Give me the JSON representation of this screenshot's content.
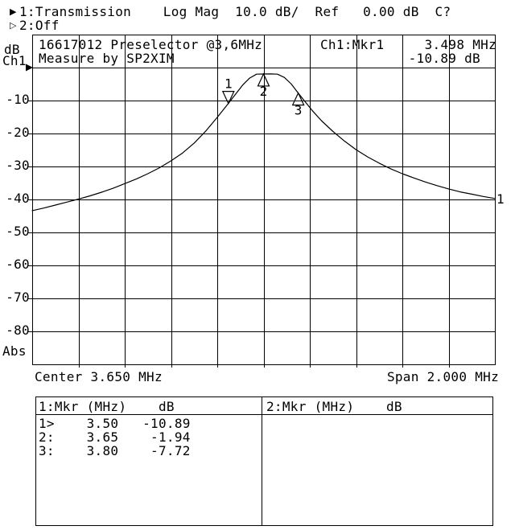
{
  "window": {
    "bg": "#ffffff",
    "fg": "#000000"
  },
  "status_bar": {
    "line1": {
      "icon": "filled-right-triangle",
      "text": "1:Transmission    Log Mag  10.0 dB/  Ref   0.00 dB  C?"
    },
    "line2": {
      "icon": "open-right-triangle",
      "text": "2:Off"
    }
  },
  "left_axis": {
    "unit": "dB",
    "channel": "Ch1",
    "bottom_label": "Abs"
  },
  "title": {
    "line1": "16617012 Preselector @3,6MHz",
    "line2": "Measure by SP2XIM"
  },
  "readout": {
    "channel_marker": "Ch1:Mkr1",
    "freq": "3.498 MHz",
    "value": "-10.89 dB"
  },
  "x_axis_labels": {
    "center": "Center 3.650 MHz",
    "span": "Span 2.000 MHz"
  },
  "marker_table": {
    "left": {
      "header": "1:Mkr (MHz)    dB",
      "rows": [
        "1>    3.50   -10.89",
        "2:    3.65    -1.94",
        "3:    3.80    -7.72"
      ]
    },
    "right": {
      "header": "2:Mkr (MHz)    dB",
      "rows": []
    }
  },
  "chart_data": {
    "type": "line",
    "title": "16617012 Preselector @3,6MHz",
    "subtitle": "Measure by SP2XIM",
    "x_axis": {
      "start_mhz": 2.65,
      "stop_mhz": 4.65,
      "center_mhz": 3.65,
      "span_mhz": 2.0,
      "divisions": 10
    },
    "y_axis": {
      "unit": "dB",
      "top_db": 10,
      "bottom_db": -90,
      "db_per_div": 10,
      "tick_labels": [
        "-10",
        "-20",
        "-30",
        "-40",
        "-50",
        "-60",
        "-70",
        "-80"
      ],
      "bottom_label": "Abs"
    },
    "ref_level_db": 0,
    "grid": true,
    "trace": {
      "name": "1",
      "points": [
        [
          2.65,
          -43.4
        ],
        [
          2.7,
          -42.6
        ],
        [
          2.75,
          -41.7
        ],
        [
          2.8,
          -40.8
        ],
        [
          2.85,
          -39.9
        ],
        [
          2.9,
          -38.9
        ],
        [
          2.95,
          -37.8
        ],
        [
          3.0,
          -36.6
        ],
        [
          3.05,
          -35.2
        ],
        [
          3.1,
          -33.8
        ],
        [
          3.15,
          -32.2
        ],
        [
          3.2,
          -30.4
        ],
        [
          3.25,
          -28.3
        ],
        [
          3.3,
          -25.9
        ],
        [
          3.35,
          -22.9
        ],
        [
          3.4,
          -19.3
        ],
        [
          3.45,
          -15.1
        ],
        [
          3.498,
          -10.89
        ],
        [
          3.53,
          -8.0
        ],
        [
          3.56,
          -5.3
        ],
        [
          3.59,
          -3.2
        ],
        [
          3.62,
          -2.0
        ],
        [
          3.65,
          -1.94
        ],
        [
          3.68,
          -1.92
        ],
        [
          3.71,
          -2.0
        ],
        [
          3.74,
          -3.0
        ],
        [
          3.77,
          -5.0
        ],
        [
          3.8,
          -7.72
        ],
        [
          3.83,
          -10.4
        ],
        [
          3.86,
          -13.0
        ],
        [
          3.9,
          -16.1
        ],
        [
          3.95,
          -19.4
        ],
        [
          4.0,
          -22.3
        ],
        [
          4.05,
          -24.9
        ],
        [
          4.1,
          -27.1
        ],
        [
          4.15,
          -29.0
        ],
        [
          4.2,
          -30.7
        ],
        [
          4.25,
          -32.2
        ],
        [
          4.3,
          -33.5
        ],
        [
          4.35,
          -34.7
        ],
        [
          4.4,
          -35.8
        ],
        [
          4.45,
          -36.8
        ],
        [
          4.5,
          -37.7
        ],
        [
          4.55,
          -38.4
        ],
        [
          4.6,
          -39.1
        ],
        [
          4.65,
          -39.7
        ]
      ]
    },
    "markers": [
      {
        "n": "1",
        "freq_mhz": 3.498,
        "db": -10.89,
        "active": true
      },
      {
        "n": "2",
        "freq_mhz": 3.65,
        "db": -1.94,
        "active": false
      },
      {
        "n": "3",
        "freq_mhz": 3.8,
        "db": -7.72,
        "active": false
      }
    ]
  }
}
